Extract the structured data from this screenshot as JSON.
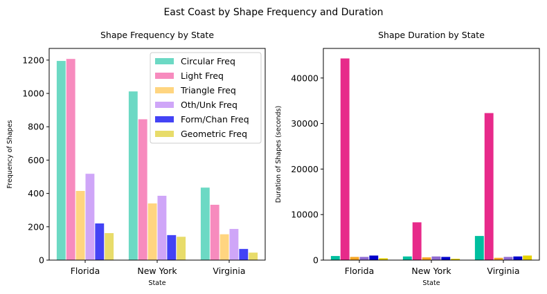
{
  "suptitle": "East Coast by Shape Frequency and Duration",
  "chart_data": [
    {
      "type": "bar",
      "title": "Shape Frequency by State",
      "xlabel": "State",
      "ylabel": "Frequency of Shapes",
      "categories": [
        "Florida",
        "New York",
        "Virginia"
      ],
      "ylim": [
        0,
        1270
      ],
      "yticks": [
        0,
        200,
        400,
        600,
        800,
        1000,
        1200
      ],
      "legend": "top-right",
      "grid": false,
      "series": [
        {
          "name": "Circular Freq",
          "color": "#6cd9c4",
          "values": [
            1195,
            1012,
            435
          ]
        },
        {
          "name": "Light Freq",
          "color": "#f78bbe",
          "values": [
            1207,
            845,
            332
          ]
        },
        {
          "name": "Triangle Freq",
          "color": "#ffd580",
          "values": [
            415,
            340,
            155
          ]
        },
        {
          "name": "Oth/Unk Freq",
          "color": "#cfa6f8",
          "values": [
            518,
            386,
            187
          ]
        },
        {
          "name": "Form/Chan Freq",
          "color": "#4343f5",
          "values": [
            220,
            150,
            67
          ]
        },
        {
          "name": "Geometric Freq",
          "color": "#e8dc6a",
          "values": [
            162,
            140,
            45
          ]
        }
      ]
    },
    {
      "type": "bar",
      "title": "Shape Duration by State",
      "xlabel": "State",
      "ylabel": "Duration of Shapes (seconds)",
      "categories": [
        "Florida",
        "New York",
        "Virginia"
      ],
      "ylim": [
        0,
        46500
      ],
      "yticks": [
        0,
        10000,
        20000,
        30000,
        40000
      ],
      "grid": false,
      "series": [
        {
          "color": "#00bf9f",
          "values": [
            900,
            800,
            5300
          ]
        },
        {
          "color": "#e72a8a",
          "values": [
            44300,
            8300,
            32300
          ]
        },
        {
          "color": "#f5a524",
          "values": [
            700,
            600,
            500
          ]
        },
        {
          "color": "#8e6ad1",
          "values": [
            700,
            800,
            700
          ]
        },
        {
          "color": "#0000cc",
          "values": [
            1000,
            700,
            800
          ]
        },
        {
          "color": "#e6d200",
          "values": [
            400,
            300,
            1000
          ]
        }
      ]
    }
  ]
}
